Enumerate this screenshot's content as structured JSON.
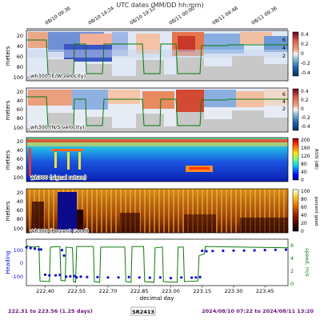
{
  "top_axis": {
    "title": "UTC dates (MM/DD hh:mm)",
    "ticks": [
      "08/10 09:36",
      "08/10 14:24",
      "08/10 19:12",
      "08/11 00:00",
      "08/11 04:48",
      "08/11 09:36"
    ]
  },
  "footer": {
    "left": "222.31 to 223.56 (1.25 days)",
    "center": "SR2413",
    "right": "2024/08/10 07:22 to 2024/08/11 13:20"
  },
  "colors": {
    "purple": "#6a1b82",
    "heading": "#1010cc",
    "speed": "#0a7a0a",
    "bottom_fill": "#c8c8c8"
  },
  "chart_data": [
    {
      "type": "heatmap",
      "title": "wh300 (E/W velocity)",
      "ylabel": "meters",
      "y_ticks": [
        20,
        40,
        60,
        80,
        100
      ],
      "ylim": [
        100,
        10
      ],
      "right_axis_ticks": [
        "6",
        "4",
        "2"
      ],
      "colorbar": {
        "ticks": [
          0.4,
          0.2,
          0.0,
          -0.2,
          -0.4
        ],
        "range": [
          -0.4,
          0.4
        ],
        "colormap": "RdBu_r"
      },
      "overlay_line_color": "#0a7a0a"
    },
    {
      "type": "heatmap",
      "title": "wh300 (N/S velocity)",
      "ylabel": "meters",
      "y_ticks": [
        20,
        40,
        60,
        80,
        100
      ],
      "ylim": [
        100,
        10
      ],
      "right_axis_ticks": [
        "6",
        "4",
        "2"
      ],
      "colorbar": {
        "ticks": [
          0.4,
          0.2,
          0.0,
          -0.2,
          -0.4
        ],
        "range": [
          -0.4,
          0.4
        ],
        "colormap": "RdBu_r"
      },
      "overlay_line_color": "#0a7a0a"
    },
    {
      "type": "heatmap",
      "title": "wh300 (signal return)",
      "ylabel": "meters",
      "y_ticks": [
        20,
        40,
        60,
        80,
        100
      ],
      "ylim": [
        100,
        10
      ],
      "colorbar": {
        "label": "RSSI (dB)",
        "ticks": [
          200,
          160,
          120,
          80,
          40,
          0
        ],
        "range": [
          0,
          200
        ],
        "colormap": "jet"
      }
    },
    {
      "type": "heatmap",
      "title": "wh300 (Percent Good)",
      "ylabel": "meters",
      "y_ticks": [
        20,
        40,
        60,
        80,
        100
      ],
      "ylim": [
        100,
        10
      ],
      "colorbar": {
        "label": "percent good",
        "ticks": [
          100,
          80,
          60,
          40,
          20,
          0
        ],
        "range": [
          0,
          100
        ],
        "colormap": "afmhot"
      }
    },
    {
      "type": "line",
      "xlabel": "decimal day",
      "x_ticks": [
        222.4,
        222.55,
        222.7,
        222.85,
        223.0,
        223.15,
        223.3,
        223.45
      ],
      "x_tick_labels": [
        "222.40",
        "222.55",
        "222.70",
        "222.85",
        "223.00",
        "223.15",
        "223.30",
        "223.45"
      ],
      "xlim": [
        222.31,
        223.56
      ],
      "y_left": {
        "label": "Heading",
        "ticks": [
          100,
          0,
          -100
        ],
        "range": [
          -160,
          180
        ]
      },
      "y_right": {
        "label": "speed, m/s",
        "ticks": [
          6,
          4,
          2,
          0
        ],
        "range": [
          0,
          7
        ]
      },
      "series": [
        {
          "kind": "scatter",
          "axis": "left",
          "color": "#1010cc",
          "x": [
            222.31,
            222.33,
            222.35,
            222.37,
            222.38,
            222.4,
            222.42,
            222.45,
            222.47,
            222.48,
            222.49,
            222.5,
            222.52,
            222.54,
            222.55,
            222.57,
            222.6,
            222.65,
            222.7,
            222.75,
            222.8,
            222.85,
            222.9,
            222.95,
            223.0,
            223.05,
            223.1,
            223.12,
            223.14,
            223.15,
            223.17,
            223.2,
            223.25,
            223.3,
            223.35,
            223.4,
            223.45,
            223.5,
            223.55
          ],
          "y": [
            120,
            115,
            110,
            105,
            105,
            -80,
            -85,
            -85,
            -82,
            100,
            60,
            -95,
            -92,
            -90,
            -100,
            -95,
            -97,
            -98,
            -100,
            -100,
            -98,
            -100,
            -102,
            -100,
            -105,
            -100,
            -102,
            -100,
            -98,
            95,
            92,
            93,
            95,
            96,
            97,
            98,
            100,
            102,
            103
          ]
        },
        {
          "kind": "line",
          "axis": "right",
          "color": "#0a7a0a",
          "x": [
            222.31,
            222.34,
            222.37,
            222.375,
            222.42,
            222.425,
            222.47,
            222.475,
            222.495,
            222.5,
            222.53,
            222.535,
            222.545,
            222.55,
            222.63,
            222.635,
            222.66,
            222.665,
            222.78,
            222.785,
            222.81,
            222.815,
            222.87,
            222.875,
            222.92,
            222.925,
            222.96,
            222.965,
            223.03,
            223.035,
            223.06,
            223.065,
            223.13,
            223.135,
            223.16,
            223.165,
            223.56
          ],
          "y": [
            6.0,
            5.8,
            5.9,
            0.7,
            0.6,
            5.8,
            5.9,
            0.8,
            0.7,
            5.8,
            5.7,
            0.6,
            0.5,
            5.9,
            5.9,
            0.6,
            0.5,
            5.8,
            5.8,
            0.6,
            0.5,
            5.9,
            5.9,
            0.6,
            0.5,
            5.7,
            5.8,
            0.6,
            0.5,
            5.8,
            5.8,
            0.6,
            0.7,
            4.5,
            4.8,
            5.9,
            5.7
          ]
        }
      ]
    }
  ]
}
